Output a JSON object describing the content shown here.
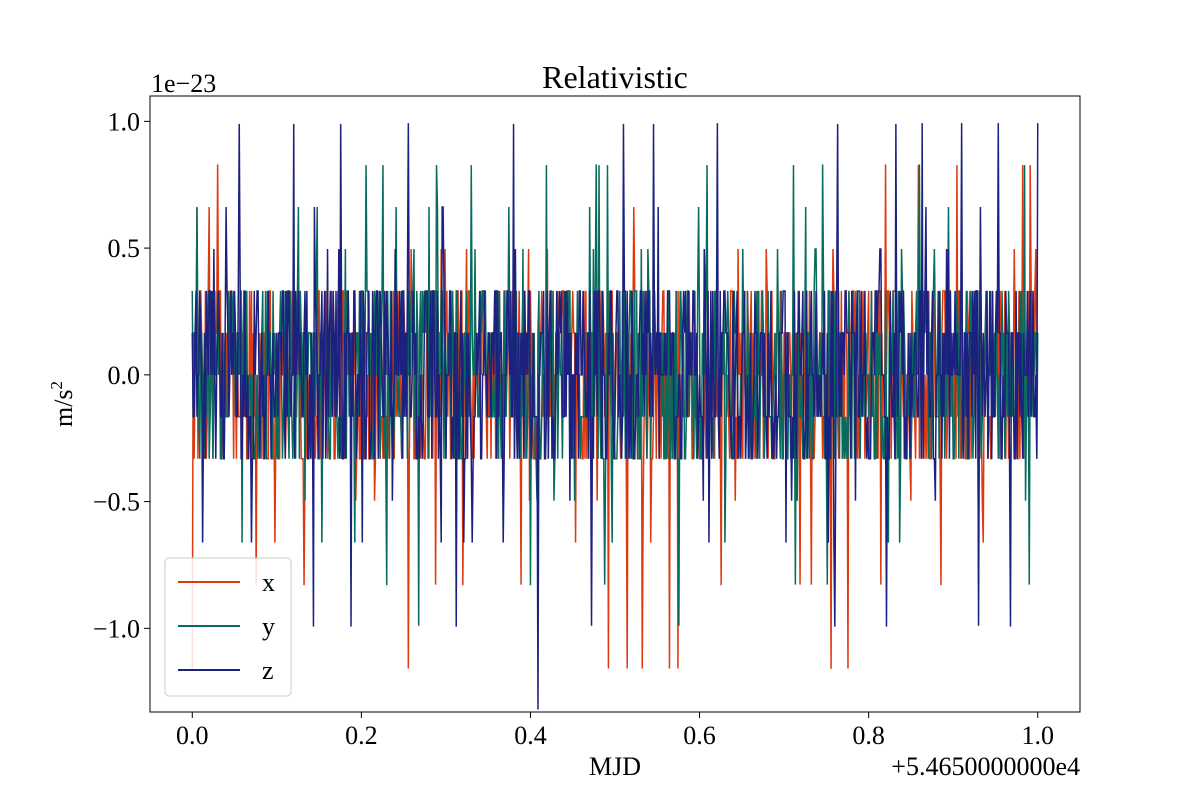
{
  "chart_data": {
    "type": "line",
    "title": "Relativistic",
    "xlabel": "MJD",
    "ylabel": "m/s",
    "ylabel_superscript": "2",
    "y_scale_label": "1e−23",
    "x_offset_label": "+5.4650000000e4",
    "xlim": [
      -0.05,
      1.05
    ],
    "ylim": [
      -1.33,
      1.1
    ],
    "x_ticks": [
      0.0,
      0.2,
      0.4,
      0.6,
      0.8,
      1.0
    ],
    "x_tick_labels": [
      "0.0",
      "0.2",
      "0.4",
      "0.6",
      "0.8",
      "1.0"
    ],
    "y_ticks": [
      -1.0,
      -0.5,
      0.0,
      0.5,
      1.0
    ],
    "y_tick_labels": [
      "−1.0",
      "−0.5",
      "0.0",
      "0.5",
      "1.0"
    ],
    "grid": false,
    "legend_position": "bottom-left",
    "x_range": [
      0.0,
      1.0
    ],
    "level_step": 0.1655,
    "series": [
      {
        "name": "x",
        "color": "#dd3a10",
        "base_levels": [
          -2,
          -1,
          0,
          1,
          2
        ],
        "extreme_levels": [
          -7,
          -5,
          -4,
          -3,
          3,
          4,
          5
        ],
        "spikes": [
          {
            "x": 0.03,
            "y": 0.83
          },
          {
            "x": 0.075,
            "y": -0.83
          },
          {
            "x": 0.132,
            "y": -0.83
          },
          {
            "x": 0.32,
            "y": -0.83
          },
          {
            "x": 0.625,
            "y": -0.83
          },
          {
            "x": 0.756,
            "y": -1.16
          },
          {
            "x": 0.82,
            "y": 0.83
          },
          {
            "x": 0.885,
            "y": -0.83
          }
        ]
      },
      {
        "name": "y",
        "color": "#076b5d",
        "base_levels": [
          -2,
          -1,
          0,
          1,
          2
        ],
        "extreme_levels": [
          -5,
          -4,
          -3,
          3,
          4,
          5
        ],
        "spikes": [
          {
            "x": 0.005,
            "y": 0.66
          },
          {
            "x": 0.23,
            "y": -0.83
          },
          {
            "x": 0.268,
            "y": -0.99
          },
          {
            "x": 0.4,
            "y": -0.83
          },
          {
            "x": 0.478,
            "y": 0.83
          },
          {
            "x": 0.575,
            "y": -0.99
          },
          {
            "x": 0.745,
            "y": 0.83
          },
          {
            "x": 0.86,
            "y": 0.83
          }
        ]
      },
      {
        "name": "z",
        "color": "#1c2180",
        "base_levels": [
          -2,
          -1,
          0,
          1,
          2
        ],
        "extreme_levels": [
          -6,
          -4,
          -3,
          3,
          4,
          6
        ],
        "spikes": [
          {
            "x": 0.055,
            "y": 0.99
          },
          {
            "x": 0.12,
            "y": 0.99
          },
          {
            "x": 0.175,
            "y": 0.99
          },
          {
            "x": 0.38,
            "y": 0.99
          },
          {
            "x": 0.409,
            "y": -1.32
          },
          {
            "x": 0.472,
            "y": -0.99
          },
          {
            "x": 0.51,
            "y": 0.99
          },
          {
            "x": 0.545,
            "y": 0.99
          },
          {
            "x": 0.763,
            "y": 0.99
          },
          {
            "x": 0.832,
            "y": 0.99
          },
          {
            "x": 0.93,
            "y": -0.99
          }
        ]
      }
    ]
  }
}
